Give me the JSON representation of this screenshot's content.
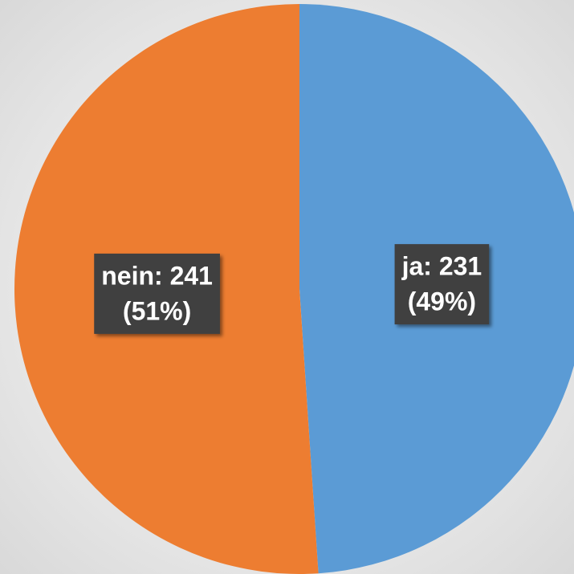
{
  "chart_data": {
    "type": "pie",
    "categories": [
      "ja",
      "nein"
    ],
    "values": [
      231,
      241
    ],
    "value_labels": [
      "ja: 231",
      "nein: 241"
    ],
    "percents": [
      49,
      51
    ],
    "percent_labels": [
      "(49%)",
      "(51%)"
    ],
    "colors": [
      "#5b9bd5",
      "#ed7d31"
    ]
  }
}
